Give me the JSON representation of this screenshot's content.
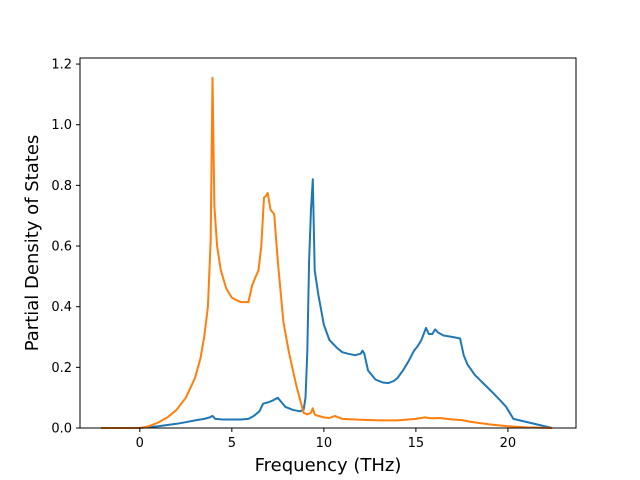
{
  "chart_data": {
    "type": "line",
    "xlabel": "Frequency (THz)",
    "ylabel": "Partial Density of States",
    "xlim": [
      -3.25,
      23.7
    ],
    "ylim": [
      0,
      1.22
    ],
    "xticks": [
      0,
      5,
      10,
      15,
      20
    ],
    "yticks": [
      0.0,
      0.2,
      0.4,
      0.6,
      0.8,
      1.0,
      1.2
    ],
    "xtick_labels": [
      "0",
      "5",
      "10",
      "15",
      "20"
    ],
    "ytick_labels": [
      "0.0",
      "0.2",
      "0.4",
      "0.6",
      "0.8",
      "1.0",
      "1.2"
    ],
    "grid": false,
    "series": [
      {
        "color": "#1f77b4",
        "x": [
          -2.1,
          0.0,
          0.5,
          1.0,
          1.5,
          2.0,
          2.5,
          3.0,
          3.5,
          3.8,
          3.95,
          4.1,
          4.5,
          5.0,
          5.5,
          5.9,
          6.2,
          6.5,
          6.7,
          7.0,
          7.2,
          7.5,
          7.9,
          8.3,
          8.7,
          8.9,
          9.0,
          9.1,
          9.2,
          9.3,
          9.4,
          9.5,
          9.7,
          10.0,
          10.3,
          10.7,
          11.0,
          11.3,
          11.7,
          12.0,
          12.1,
          12.2,
          12.4,
          12.8,
          13.2,
          13.5,
          13.8,
          14.0,
          14.3,
          14.6,
          14.9,
          15.1,
          15.3,
          15.55,
          15.7,
          15.9,
          16.05,
          16.2,
          16.5,
          17.0,
          17.4,
          17.6,
          17.8,
          18.2,
          18.7,
          19.2,
          19.6,
          19.9,
          20.1,
          20.3,
          22.4
        ],
        "y": [
          0.0,
          0.0,
          0.003,
          0.006,
          0.01,
          0.014,
          0.019,
          0.025,
          0.03,
          0.035,
          0.04,
          0.03,
          0.028,
          0.028,
          0.028,
          0.03,
          0.04,
          0.055,
          0.08,
          0.085,
          0.09,
          0.1,
          0.07,
          0.06,
          0.055,
          0.06,
          0.1,
          0.25,
          0.55,
          0.72,
          0.82,
          0.52,
          0.44,
          0.34,
          0.29,
          0.265,
          0.25,
          0.245,
          0.24,
          0.245,
          0.255,
          0.245,
          0.19,
          0.16,
          0.15,
          0.148,
          0.155,
          0.165,
          0.19,
          0.22,
          0.255,
          0.27,
          0.29,
          0.33,
          0.31,
          0.31,
          0.325,
          0.315,
          0.305,
          0.3,
          0.295,
          0.24,
          0.21,
          0.175,
          0.145,
          0.115,
          0.09,
          0.07,
          0.05,
          0.03,
          0.0
        ]
      },
      {
        "color": "#ff7f0e",
        "x": [
          -2.1,
          0.0,
          0.5,
          1.0,
          1.5,
          2.0,
          2.5,
          3.0,
          3.3,
          3.5,
          3.7,
          3.85,
          3.95,
          4.05,
          4.2,
          4.4,
          4.7,
          5.0,
          5.3,
          5.5,
          5.9,
          6.1,
          6.3,
          6.45,
          6.6,
          6.75,
          6.85,
          6.95,
          7.1,
          7.3,
          7.5,
          7.8,
          8.1,
          8.5,
          8.9,
          9.1,
          9.3,
          9.4,
          9.5,
          9.7,
          10.0,
          10.3,
          10.6,
          11.0,
          12.0,
          13.0,
          14.0,
          15.0,
          15.5,
          15.7,
          15.9,
          16.3,
          17.0,
          17.5,
          18.0,
          19.0,
          20.0,
          21.0,
          22.4
        ],
        "y": [
          0.0,
          0.0,
          0.006,
          0.018,
          0.035,
          0.06,
          0.1,
          0.165,
          0.23,
          0.3,
          0.4,
          0.62,
          1.155,
          0.73,
          0.6,
          0.52,
          0.46,
          0.43,
          0.42,
          0.415,
          0.415,
          0.47,
          0.5,
          0.52,
          0.6,
          0.76,
          0.765,
          0.775,
          0.72,
          0.705,
          0.55,
          0.35,
          0.25,
          0.14,
          0.05,
          0.045,
          0.05,
          0.065,
          0.045,
          0.04,
          0.035,
          0.033,
          0.04,
          0.03,
          0.027,
          0.025,
          0.025,
          0.03,
          0.035,
          0.033,
          0.032,
          0.033,
          0.028,
          0.026,
          0.02,
          0.012,
          0.006,
          0.002,
          0.0
        ]
      }
    ]
  }
}
